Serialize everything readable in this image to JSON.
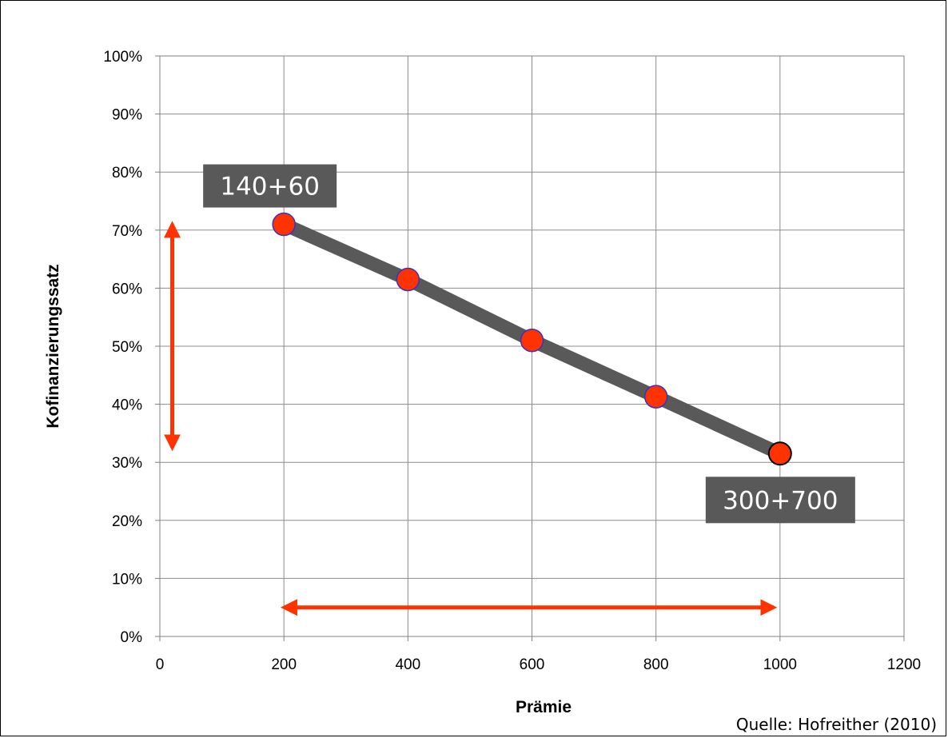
{
  "chart_data": {
    "type": "line",
    "xlabel": "Prämie",
    "ylabel": "Kofinanzierungssatz",
    "xlim": [
      0,
      1200
    ],
    "ylim": [
      0,
      1
    ],
    "x_ticks": [
      "0",
      "200",
      "400",
      "600",
      "800",
      "1000",
      "1200"
    ],
    "y_ticks": [
      "0%",
      "10%",
      "20%",
      "30%",
      "40%",
      "50%",
      "60%",
      "70%",
      "80%",
      "90%",
      "100%"
    ],
    "grid": true,
    "series": [
      {
        "x": [
          200,
          400,
          600,
          800,
          1000
        ],
        "y": [
          0.71,
          0.615,
          0.51,
          0.413,
          0.315
        ]
      }
    ],
    "annotations": [
      {
        "text": "140+60",
        "x": 200,
        "y": 0.71
      },
      {
        "text": "300+700",
        "x": 1000,
        "y": 0.315
      }
    ],
    "range_arrows": {
      "vertical": {
        "x": 20,
        "y_from": 0.325,
        "y_to": 0.71
      },
      "horizontal": {
        "y": 0.05,
        "x_from": 200,
        "x_to": 990
      }
    },
    "source": "Quelle: Hofreither (2010)",
    "colors": {
      "line": "#595959",
      "marker": "#ff3300",
      "marker_edge": "#3333cc",
      "last_marker_edge": "#000000",
      "arrow": "#ff3300",
      "label_box": "#595959"
    }
  }
}
